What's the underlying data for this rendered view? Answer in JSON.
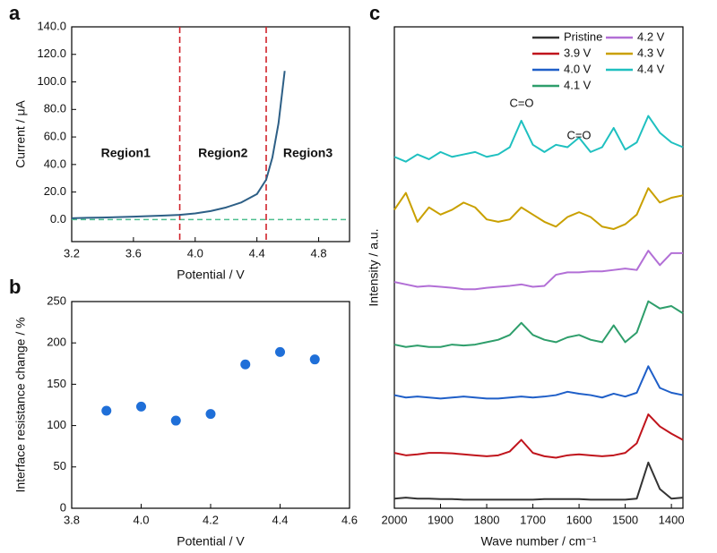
{
  "chart_data": [
    {
      "type": "line",
      "panel_label": "a",
      "xlabel": "Potential / V",
      "ylabel": "Current / μA",
      "x": [
        3.2,
        3.3,
        3.4,
        3.5,
        3.6,
        3.7,
        3.8,
        3.9,
        4.0,
        4.1,
        4.2,
        4.3,
        4.4,
        4.46,
        4.5,
        4.54,
        4.58
      ],
      "values": [
        1.0,
        1.3,
        1.5,
        1.8,
        2.1,
        2.5,
        2.9,
        3.4,
        4.5,
        6.2,
        8.8,
        12.5,
        18.5,
        29,
        45,
        70,
        108
      ],
      "color": "#2d5f86",
      "xlim": [
        3.2,
        5.0
      ],
      "xticks": [
        3.2,
        3.6,
        {
          "value": 4,
          "label": "4.0"
        },
        4.4,
        4.8
      ],
      "ylim": [
        -16,
        140
      ],
      "yticks": [
        {
          "value": 0,
          "label": "0.0"
        },
        {
          "value": 20,
          "label": "20.0"
        },
        {
          "value": 40,
          "label": "40.0"
        },
        {
          "value": 60,
          "label": "60.0"
        },
        {
          "value": 80,
          "label": "80.0"
        },
        {
          "value": 100,
          "label": "100.0"
        },
        {
          "value": 120,
          "label": "120.0"
        },
        {
          "value": 140,
          "label": "140.0"
        }
      ],
      "vlines": [
        3.9,
        4.46
      ],
      "vline_color": "#d0222a",
      "hline": 0,
      "hline_color": "#4cbf8f",
      "regions": [
        "Region1",
        "Region2",
        "Region3"
      ]
    },
    {
      "type": "scatter",
      "panel_label": "b",
      "xlabel": "Potential / V",
      "ylabel": "Interface resistance change / %",
      "x": [
        3.9,
        4.0,
        4.1,
        4.2,
        4.3,
        4.4,
        4.5
      ],
      "values": [
        118,
        123,
        106,
        114,
        174,
        189,
        180
      ],
      "color": "#1f6fd8",
      "xlim": [
        3.8,
        4.6
      ],
      "xticks": [
        3.8,
        {
          "value": 4,
          "label": "4.0"
        },
        4.2,
        4.4,
        4.6
      ],
      "ylim": [
        0,
        250
      ],
      "yticks": [
        0,
        50,
        100,
        150,
        200,
        250
      ]
    },
    {
      "type": "line",
      "panel_label": "c",
      "xlabel": "Wave number / cm⁻¹",
      "ylabel": "Intensity / a.u.",
      "x": [
        2000,
        1975,
        1950,
        1925,
        1900,
        1875,
        1850,
        1825,
        1800,
        1775,
        1750,
        1725,
        1700,
        1675,
        1650,
        1625,
        1600,
        1575,
        1550,
        1525,
        1500,
        1475,
        1450,
        1425,
        1400,
        1375
      ],
      "xlim": [
        2000,
        1375
      ],
      "xticks": [
        2000,
        1900,
        1800,
        1700,
        1600,
        1500,
        1400
      ],
      "ylim": [
        0,
        10
      ],
      "legend": "upper right",
      "annotations": [
        "C=O",
        "C=O"
      ],
      "series": [
        {
          "name": "Pristine",
          "color": "#333333",
          "values": [
            0.2,
            0.22,
            0.2,
            0.2,
            0.19,
            0.19,
            0.18,
            0.18,
            0.18,
            0.18,
            0.18,
            0.18,
            0.18,
            0.19,
            0.19,
            0.19,
            0.19,
            0.18,
            0.18,
            0.18,
            0.18,
            0.2,
            0.95,
            0.4,
            0.2,
            0.22
          ]
        },
        {
          "name": "3.9 V",
          "color": "#c0141c",
          "values": [
            1.15,
            1.1,
            1.12,
            1.15,
            1.15,
            1.14,
            1.12,
            1.1,
            1.08,
            1.1,
            1.18,
            1.42,
            1.15,
            1.08,
            1.05,
            1.1,
            1.12,
            1.1,
            1.08,
            1.1,
            1.15,
            1.35,
            1.95,
            1.7,
            1.55,
            1.42
          ]
        },
        {
          "name": "4.0 V",
          "color": "#1f5fc8",
          "values": [
            2.35,
            2.3,
            2.32,
            2.3,
            2.28,
            2.3,
            2.32,
            2.3,
            2.28,
            2.28,
            2.3,
            2.32,
            2.3,
            2.32,
            2.35,
            2.42,
            2.38,
            2.35,
            2.3,
            2.38,
            2.32,
            2.4,
            2.95,
            2.5,
            2.4,
            2.35
          ]
        },
        {
          "name": "4.1 V",
          "color": "#2e9e6b",
          "values": [
            3.4,
            3.35,
            3.38,
            3.35,
            3.35,
            3.4,
            3.38,
            3.4,
            3.45,
            3.5,
            3.6,
            3.85,
            3.6,
            3.5,
            3.45,
            3.55,
            3.6,
            3.5,
            3.45,
            3.8,
            3.45,
            3.65,
            4.3,
            4.15,
            4.2,
            4.05
          ]
        },
        {
          "name": "4.2 V",
          "color": "#b26fd6",
          "values": [
            4.7,
            4.65,
            4.6,
            4.62,
            4.6,
            4.58,
            4.55,
            4.55,
            4.58,
            4.6,
            4.62,
            4.65,
            4.6,
            4.62,
            4.85,
            4.9,
            4.9,
            4.92,
            4.92,
            4.95,
            4.98,
            4.95,
            5.35,
            5.05,
            5.3,
            5.3
          ]
        },
        {
          "name": "4.3 V",
          "color": "#c9a000",
          "values": [
            6.2,
            6.55,
            5.95,
            6.25,
            6.1,
            6.2,
            6.35,
            6.25,
            6.0,
            5.95,
            6.0,
            6.25,
            6.1,
            5.95,
            5.85,
            6.05,
            6.15,
            6.05,
            5.85,
            5.8,
            5.9,
            6.1,
            6.65,
            6.35,
            6.45,
            6.5
          ]
        },
        {
          "name": "4.4 V",
          "color": "#1fc0c0",
          "values": [
            7.3,
            7.2,
            7.35,
            7.25,
            7.4,
            7.3,
            7.35,
            7.4,
            7.3,
            7.35,
            7.5,
            8.05,
            7.55,
            7.4,
            7.55,
            7.5,
            7.7,
            7.4,
            7.5,
            7.9,
            7.45,
            7.6,
            8.15,
            7.8,
            7.6,
            7.5
          ]
        }
      ]
    }
  ]
}
